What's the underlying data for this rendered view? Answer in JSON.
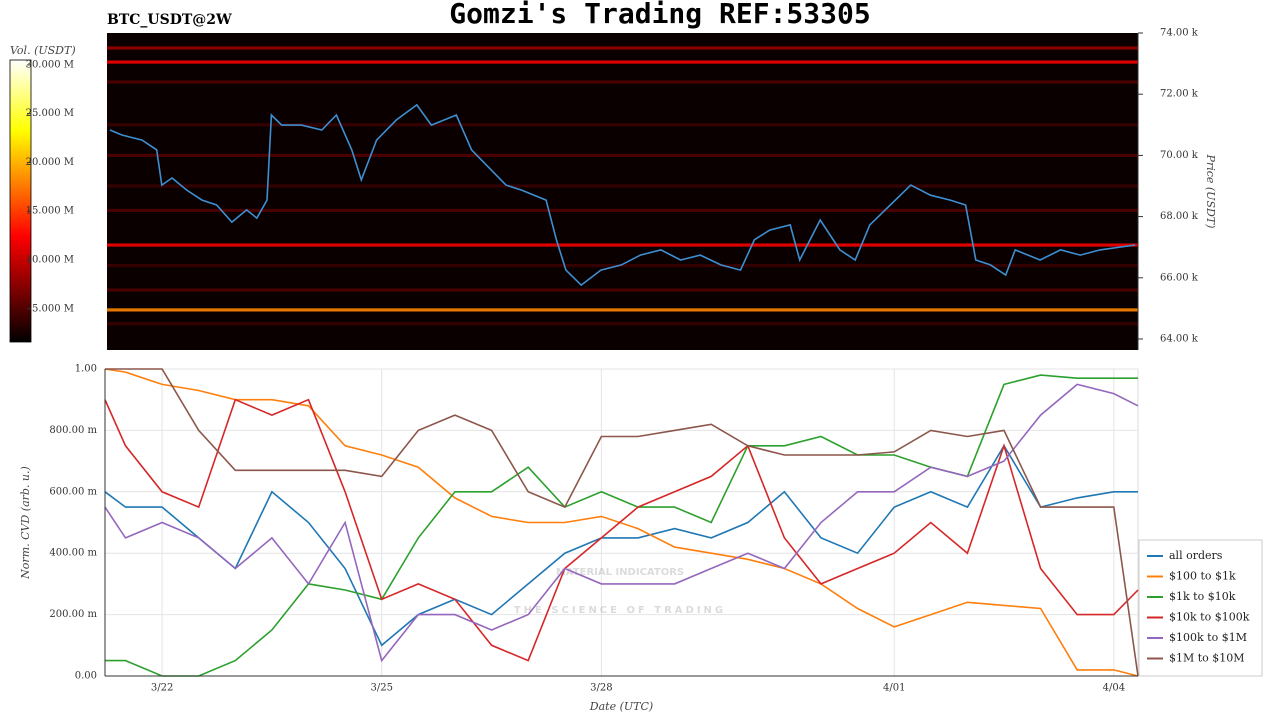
{
  "header": {
    "symbol": "BTC_USDT@2W",
    "title": "Gomzi's Trading REF:53305"
  },
  "watermark": [
    "MATERIAL INDICATORS",
    "THE SCIENCE OF TRADING"
  ],
  "chart_data": [
    {
      "type": "heatmap",
      "y_label": "Price (USDT)",
      "xlim": [
        21.22,
        35.33
      ],
      "ylim": [
        63640,
        74000
      ],
      "yticks": [
        {
          "value": 64000,
          "label": "64.00 k"
        },
        {
          "value": 66000,
          "label": "66.00 k"
        },
        {
          "value": 68000,
          "label": "68.00 k"
        },
        {
          "value": 70000,
          "label": "70.00 k"
        },
        {
          "value": 72000,
          "label": "72.00 k"
        },
        {
          "value": 74000,
          "label": "74.00 k"
        }
      ],
      "colorbar": {
        "label": "Vol. (USDT)",
        "clim": [
          1.6,
          30.5
        ],
        "ticks": [
          {
            "value": 5,
            "label": "5.000 M"
          },
          {
            "value": 10,
            "label": "10.000 M"
          },
          {
            "value": 15,
            "label": "15.000 M"
          },
          {
            "value": 20,
            "label": "20.000 M"
          },
          {
            "value": 25,
            "label": "25.000 M"
          },
          {
            "value": 30,
            "label": "30.000 M"
          }
        ]
      },
      "bands": [
        {
          "price": 73510,
          "volume": 8
        },
        {
          "price": 73050,
          "volume": 12
        },
        {
          "price": 72400,
          "volume": 5
        },
        {
          "price": 71000,
          "volume": 4
        },
        {
          "price": 70000,
          "volume": 5
        },
        {
          "price": 69000,
          "volume": 4
        },
        {
          "price": 68200,
          "volume": 5
        },
        {
          "price": 67070,
          "volume": 12
        },
        {
          "price": 66400,
          "volume": 4
        },
        {
          "price": 65600,
          "volume": 5
        },
        {
          "price": 64950,
          "volume": 18
        },
        {
          "price": 64500,
          "volume": 4
        }
      ],
      "price": {
        "color": "#3d8fd1",
        "x": [
          21.26,
          21.42,
          21.7,
          21.9,
          21.97,
          22.11,
          22.31,
          22.52,
          22.72,
          22.93,
          23.13,
          23.27,
          23.41,
          23.47,
          23.61,
          23.88,
          24.16,
          24.36,
          24.57,
          24.7,
          24.91,
          25.18,
          25.46,
          25.66,
          26.0,
          26.21,
          26.48,
          26.68,
          26.89,
          27.23,
          27.37,
          27.5,
          27.71,
          27.98,
          28.26,
          28.52,
          28.8,
          29.07,
          29.34,
          29.62,
          29.89,
          30.08,
          30.29,
          30.57,
          30.7,
          30.98,
          31.25,
          31.46,
          31.66,
          31.94,
          32.22,
          32.49,
          32.76,
          32.97,
          33.11,
          33.31,
          33.52,
          33.65,
          33.99,
          34.27,
          34.54,
          34.81,
          35.29
        ],
        "values": [
          70830,
          70670,
          70500,
          70180,
          69030,
          69260,
          68870,
          68540,
          68380,
          67820,
          68220,
          67950,
          68540,
          71320,
          70990,
          70990,
          70830,
          71320,
          70180,
          69200,
          70500,
          71160,
          71650,
          70990,
          71320,
          70180,
          69520,
          69030,
          68870,
          68540,
          67240,
          66250,
          65760,
          66250,
          66420,
          66740,
          66910,
          66580,
          66740,
          66420,
          66250,
          67240,
          67560,
          67730,
          66580,
          67890,
          66910,
          66580,
          67730,
          68380,
          69030,
          68700,
          68540,
          68380,
          66580,
          66420,
          66090,
          66910,
          66580,
          66910,
          66740,
          66910,
          67070
        ]
      }
    },
    {
      "type": "line",
      "y_label": "Norm. CVD (arb. u.)",
      "x_label": "Date (UTC)",
      "xlim": [
        21.22,
        35.33
      ],
      "ylim": [
        0,
        1
      ],
      "xticks": [
        {
          "value": 22,
          "label": "3/22"
        },
        {
          "value": 25,
          "label": "3/25"
        },
        {
          "value": 28,
          "label": "3/28"
        },
        {
          "value": 32,
          "label": "4/01"
        },
        {
          "value": 35,
          "label": "4/04"
        }
      ],
      "yticks": [
        {
          "value": 0,
          "label": "0.00"
        },
        {
          "value": 0.2,
          "label": "200.00 m"
        },
        {
          "value": 0.4,
          "label": "400.00 m"
        },
        {
          "value": 0.6,
          "label": "600.00 m"
        },
        {
          "value": 0.8,
          "label": "800.00 m"
        },
        {
          "value": 1,
          "label": "1.00"
        }
      ],
      "grid": true,
      "legend": "lower-right",
      "x": [
        21.22,
        21.5,
        22,
        22.5,
        23,
        23.5,
        24,
        24.5,
        25,
        25.5,
        26,
        26.5,
        27,
        27.5,
        28,
        28.5,
        29,
        29.5,
        30,
        30.5,
        31,
        31.5,
        32,
        32.5,
        33,
        33.5,
        34,
        34.5,
        35,
        35.33
      ],
      "series": [
        {
          "name": "all orders",
          "color": "#1f77b4",
          "values": [
            0.6,
            0.55,
            0.55,
            0.45,
            0.35,
            0.6,
            0.5,
            0.35,
            0.1,
            0.2,
            0.25,
            0.2,
            0.3,
            0.4,
            0.45,
            0.45,
            0.48,
            0.45,
            0.5,
            0.6,
            0.45,
            0.4,
            0.55,
            0.6,
            0.55,
            0.75,
            0.55,
            0.58,
            0.6,
            0.6
          ]
        },
        {
          "name": "$100 to $1k",
          "color": "#ff7f0e",
          "values": [
            1.0,
            0.99,
            0.95,
            0.93,
            0.9,
            0.9,
            0.88,
            0.75,
            0.72,
            0.68,
            0.58,
            0.52,
            0.5,
            0.5,
            0.52,
            0.48,
            0.42,
            0.4,
            0.38,
            0.35,
            0.3,
            0.22,
            0.16,
            0.2,
            0.24,
            0.23,
            0.22,
            0.02,
            0.02,
            0.0
          ]
        },
        {
          "name": "$1k to $10k",
          "color": "#2ca02c",
          "values": [
            0.05,
            0.05,
            0.0,
            0.0,
            0.05,
            0.15,
            0.3,
            0.28,
            0.25,
            0.45,
            0.6,
            0.6,
            0.68,
            0.55,
            0.6,
            0.55,
            0.55,
            0.5,
            0.75,
            0.75,
            0.78,
            0.72,
            0.72,
            0.68,
            0.65,
            0.95,
            0.98,
            0.97,
            0.97,
            0.97
          ]
        },
        {
          "name": "$10k to $100k",
          "color": "#d62728",
          "values": [
            0.9,
            0.75,
            0.6,
            0.55,
            0.9,
            0.85,
            0.9,
            0.6,
            0.25,
            0.3,
            0.25,
            0.1,
            0.05,
            0.35,
            0.45,
            0.55,
            0.6,
            0.65,
            0.75,
            0.45,
            0.3,
            0.35,
            0.4,
            0.5,
            0.4,
            0.75,
            0.35,
            0.2,
            0.2,
            0.28
          ]
        },
        {
          "name": "$100k to $1M",
          "color": "#9467bd",
          "values": [
            0.55,
            0.45,
            0.5,
            0.45,
            0.35,
            0.45,
            0.3,
            0.5,
            0.05,
            0.2,
            0.2,
            0.15,
            0.2,
            0.35,
            0.3,
            0.3,
            0.3,
            0.35,
            0.4,
            0.35,
            0.5,
            0.6,
            0.6,
            0.68,
            0.65,
            0.7,
            0.85,
            0.95,
            0.92,
            0.88
          ]
        },
        {
          "name": "$1M to $10M",
          "color": "#8c564b",
          "values": [
            1.0,
            1.0,
            1.0,
            0.8,
            0.67,
            0.67,
            0.67,
            0.67,
            0.65,
            0.8,
            0.85,
            0.8,
            0.6,
            0.55,
            0.78,
            0.78,
            0.8,
            0.82,
            0.75,
            0.72,
            0.72,
            0.72,
            0.73,
            0.8,
            0.78,
            0.8,
            0.55,
            0.55,
            0.55,
            0.0
          ]
        }
      ]
    }
  ]
}
